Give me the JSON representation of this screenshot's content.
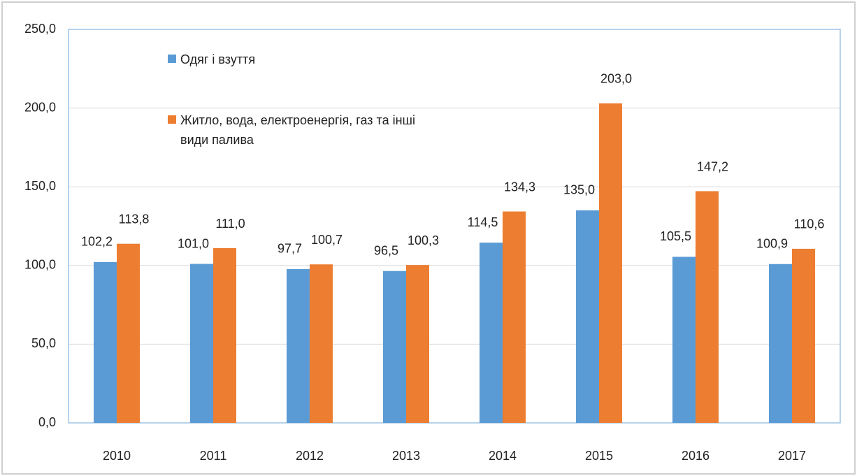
{
  "chart_data": {
    "type": "bar",
    "categories": [
      "2010",
      "2011",
      "2012",
      "2013",
      "2014",
      "2015",
      "2016",
      "2017"
    ],
    "series": [
      {
        "name": "Одяг і взуття",
        "color": "#5b9bd5",
        "values": [
          102.2,
          101.0,
          97.7,
          96.5,
          114.5,
          135.0,
          105.5,
          100.9
        ],
        "value_labels": [
          "102,2",
          "101,0",
          "97,7",
          "96,5",
          "114,5",
          "135,0",
          "105,5",
          "100,9"
        ]
      },
      {
        "name": "Житло, вода, електроенергія, газ та інші види палива",
        "color": "#ed7d31",
        "values": [
          113.8,
          111.0,
          100.7,
          100.3,
          134.3,
          203.0,
          147.2,
          110.6
        ],
        "value_labels": [
          "113,8",
          "111,0",
          "100,7",
          "100,3",
          "134,3",
          "203,0",
          "147,2",
          "110,6"
        ]
      }
    ],
    "ylim": [
      0,
      250
    ],
    "yticks": [
      {
        "value": 0,
        "label": "0,0"
      },
      {
        "value": 50,
        "label": "50,0"
      },
      {
        "value": 100,
        "label": "100,0"
      },
      {
        "value": 150,
        "label": "150,0"
      },
      {
        "value": 200,
        "label": "200,0"
      },
      {
        "value": 250,
        "label": "250,0"
      }
    ],
    "grid": true,
    "legend": "upper left"
  }
}
